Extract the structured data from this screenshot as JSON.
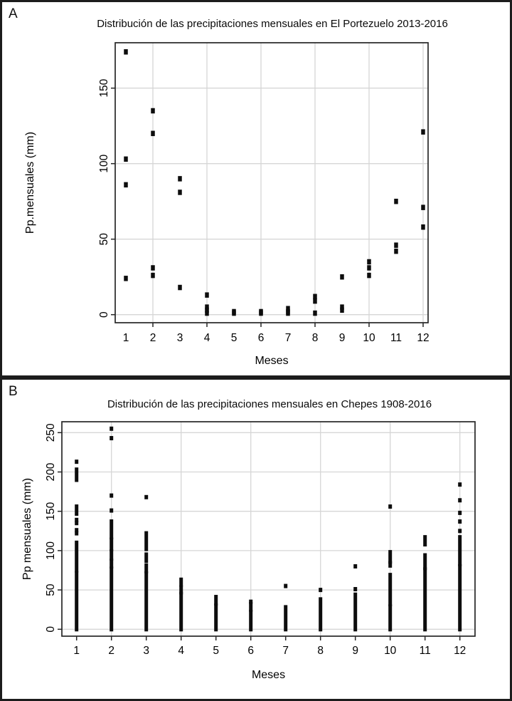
{
  "colors": {
    "marker": "#0d0d0d",
    "grid": "#d6d6d6",
    "frame": "#262626",
    "text": "#000000",
    "background": "#ffffff"
  },
  "panels": [
    {
      "letter": "A"
    },
    {
      "letter": "B"
    }
  ],
  "chart_data": [
    {
      "type": "scatter",
      "title": "Distribución de las precipitaciones mensuales en El Portezuelo 2013-2016",
      "xlabel": "Meses",
      "ylabel": "Pp.mensuales (mm)",
      "x_ticks": [
        1,
        2,
        3,
        4,
        5,
        6,
        7,
        8,
        9,
        10,
        11,
        12
      ],
      "x_tick_marks_at": [
        2,
        4,
        6,
        8,
        10,
        12
      ],
      "x_gridlines_at": [
        2,
        4,
        6,
        8,
        10,
        12
      ],
      "y_ticks": [
        0,
        50,
        100,
        150
      ],
      "ylim": [
        -5,
        180
      ],
      "xlim": [
        0.6,
        12.4
      ],
      "grid": true,
      "legend": false,
      "marker": "filled-square",
      "points_by_month": {
        "1": [
          174,
          103,
          86,
          24
        ],
        "2": [
          135,
          120,
          31,
          26
        ],
        "3": [
          90,
          81,
          18
        ],
        "4": [
          13,
          5,
          3,
          1
        ],
        "5": [
          2,
          1
        ],
        "6": [
          2,
          1
        ],
        "7": [
          4,
          2,
          1
        ],
        "8": [
          12,
          9,
          1
        ],
        "9": [
          25,
          5,
          3
        ],
        "10": [
          35,
          31,
          26
        ],
        "11": [
          75,
          46,
          42
        ],
        "12": [
          121,
          71,
          58
        ]
      }
    },
    {
      "type": "strip",
      "title": "Distribución de las precipitaciones mensuales en Chepes 1908-2016",
      "xlabel": "Meses",
      "ylabel": "Pp mensuales (mm)",
      "x_ticks": [
        1,
        2,
        3,
        4,
        5,
        6,
        7,
        8,
        9,
        10,
        11,
        12
      ],
      "x_tick_marks_at": [
        1,
        2,
        3,
        4,
        5,
        6,
        7,
        8,
        9,
        10,
        11,
        12
      ],
      "x_gridlines_at": [
        2,
        4,
        6,
        8,
        10,
        12
      ],
      "y_ticks": [
        0,
        50,
        100,
        150,
        200,
        250
      ],
      "ylim": [
        -9,
        264
      ],
      "xlim": [
        0.6,
        12.4
      ],
      "grid": true,
      "legend": false,
      "marker": "filled-square",
      "months": [
        {
          "month": 1,
          "dense_segments": [
            [
              0,
              71
            ],
            [
              75,
              110
            ],
            [
              147,
              156
            ],
            [
              190,
              203
            ]
          ],
          "points": [
            122,
            126,
            135,
            139,
            213
          ]
        },
        {
          "month": 2,
          "dense_segments": [
            [
              0,
              77
            ],
            [
              80,
              87
            ],
            [
              90,
              99
            ],
            [
              102,
              114
            ],
            [
              117,
              137
            ]
          ],
          "points": [
            151,
            170,
            243,
            255
          ]
        },
        {
          "month": 3,
          "dense_segments": [
            [
              0,
              71
            ],
            [
              74,
              81
            ],
            [
              87,
              95
            ],
            [
              102,
              122
            ]
          ],
          "points": [
            168
          ]
        },
        {
          "month": 4,
          "dense_segments": [
            [
              0,
              45
            ],
            [
              47,
              53
            ],
            [
              57,
              63
            ]
          ],
          "points": []
        },
        {
          "month": 5,
          "dense_segments": [
            [
              0,
              30
            ],
            [
              33,
              41
            ]
          ],
          "points": []
        },
        {
          "month": 6,
          "dense_segments": [
            [
              0,
              22
            ],
            [
              25,
              32
            ]
          ],
          "points": [
            35
          ]
        },
        {
          "month": 7,
          "dense_segments": [
            [
              0,
              28
            ]
          ],
          "points": [
            55
          ]
        },
        {
          "month": 8,
          "dense_segments": [
            [
              0,
              38
            ]
          ],
          "points": [
            50
          ]
        },
        {
          "month": 9,
          "dense_segments": [
            [
              0,
              44
            ]
          ],
          "points": [
            51,
            80
          ]
        },
        {
          "month": 10,
          "dense_segments": [
            [
              0,
              29
            ],
            [
              32,
              69
            ],
            [
              81,
              84
            ],
            [
              86,
              98
            ]
          ],
          "points": [
            156
          ]
        },
        {
          "month": 11,
          "dense_segments": [
            [
              0,
              76
            ],
            [
              78,
              94
            ],
            [
              108,
              117
            ]
          ],
          "points": []
        },
        {
          "month": 12,
          "dense_segments": [
            [
              0,
              80
            ],
            [
              83,
              117
            ]
          ],
          "points": [
            125,
            137,
            148,
            164,
            184
          ]
        }
      ]
    }
  ]
}
